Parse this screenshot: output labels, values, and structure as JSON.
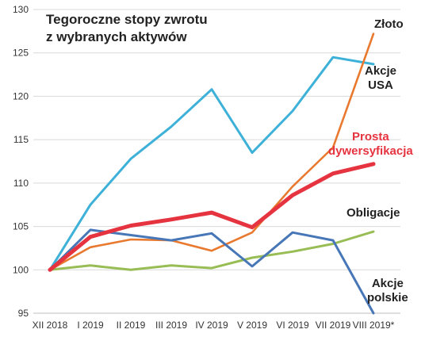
{
  "chart_data": {
    "type": "line",
    "title_lines": [
      "Tegoroczne stopy zwrotu",
      "z wybranych aktywów"
    ],
    "categories": [
      "XII 2018",
      "I 2019",
      "II 2019",
      "III 2019",
      "IV 2019",
      "V 2019",
      "VI 2019",
      "VII 2019",
      "VIII 2019*"
    ],
    "ylim": [
      95,
      130
    ],
    "yticks": [
      95,
      100,
      105,
      110,
      115,
      120,
      125,
      130
    ],
    "grid": "horizontal",
    "series": [
      {
        "name": "Akcje USA",
        "label_lines": [
          "Akcje",
          "USA"
        ],
        "color": "#3eb1d9",
        "width": 3,
        "values": [
          100,
          107.5,
          112.8,
          116.5,
          120.8,
          113.5,
          118.3,
          124.5,
          123.7
        ]
      },
      {
        "name": "Złoto",
        "label_lines": [
          "Złoto"
        ],
        "color": "#e8792f",
        "width": 2.6,
        "values": [
          100,
          102.6,
          103.5,
          103.4,
          102.2,
          104.3,
          109.6,
          114.1,
          127.2
        ]
      },
      {
        "name": "Obligacje",
        "label_lines": [
          "Obligacje"
        ],
        "color": "#98bd55",
        "width": 3,
        "values": [
          100,
          100.5,
          100.0,
          100.5,
          100.2,
          101.4,
          102.1,
          103.0,
          104.4
        ]
      },
      {
        "name": "Akcje polskie",
        "label_lines": [
          "Akcje",
          "polskie"
        ],
        "color": "#4877b7",
        "width": 3,
        "values": [
          100,
          104.6,
          104.0,
          103.4,
          104.2,
          100.4,
          104.3,
          103.4,
          95.0
        ]
      },
      {
        "name": "Prosta dywersyfikacja",
        "label_lines": [
          "Prosta",
          "dywersyfikacja"
        ],
        "color": "#e63340",
        "label_color": "#e63340",
        "width": 5,
        "values": [
          100,
          103.8,
          105.1,
          105.8,
          106.6,
          104.9,
          108.6,
          111.1,
          112.2
        ]
      }
    ]
  }
}
